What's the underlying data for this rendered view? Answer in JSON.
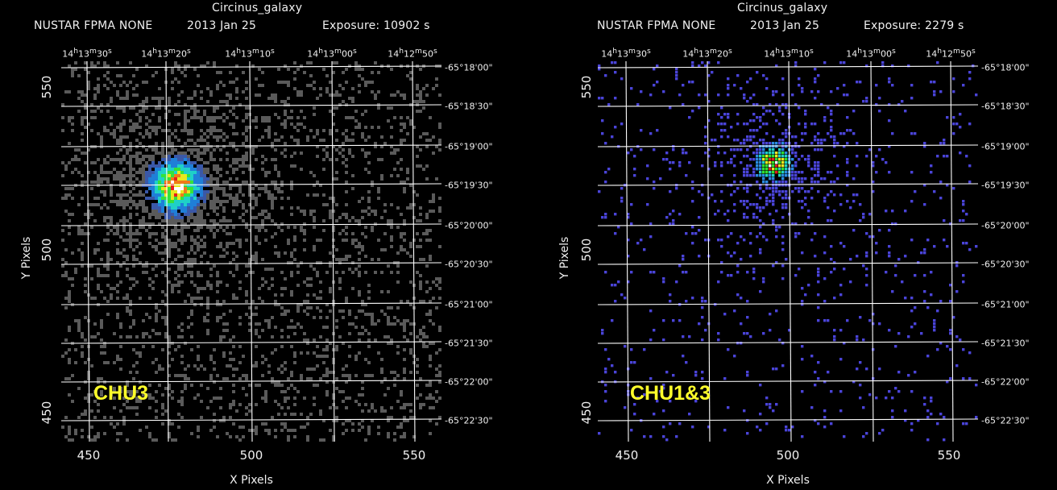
{
  "left": {
    "target": "Circinus_galaxy",
    "instrument": "NUSTAR FPMA NONE",
    "date": "2013 Jan 25",
    "exposure": "Exposure: 10902 s",
    "label": "CHU3",
    "ra_ticks": [
      "14h13m30s",
      "14h13m20s",
      "14h13m10s",
      "14h13m00s",
      "14h12m50s"
    ],
    "dec_ticks": [
      "-65°18'00\"",
      "-65°18'30\"",
      "-65°19'00\"",
      "-65°19'30\"",
      "-65°20'00\"",
      "-65°20'30\"",
      "-65°21'00\"",
      "-65°21'30\"",
      "-65°22'00\"",
      "-65°22'30\""
    ],
    "x_ticks": [
      "450",
      "500",
      "550"
    ],
    "y_ticks": [
      "550",
      "500",
      "450"
    ],
    "xlabel": "X Pixels",
    "ylabel": "Y Pixels",
    "colormap": "gray-rainbow",
    "source_center": [
      476,
      513
    ]
  },
  "right": {
    "target": "Circinus_galaxy",
    "instrument": "NUSTAR FPMA NONE",
    "date": "2013 Jan 25",
    "exposure": "Exposure: 2279 s",
    "label": "CHU1&3",
    "ra_ticks": [
      "14h13m30s",
      "14h13m20s",
      "14h13m10s",
      "14h13m00s",
      "14h12m50s"
    ],
    "dec_ticks": [
      "-65°18'00\"",
      "-65°18'30\"",
      "-65°19'00\"",
      "-65°19'30\"",
      "-65°20'00\"",
      "-65°20'30\"",
      "-65°21'00\"",
      "-65°21'30\"",
      "-65°22'00\"",
      "-65°22'30\""
    ],
    "x_ticks": [
      "450",
      "500",
      "550"
    ],
    "y_ticks": [
      "550",
      "500",
      "450"
    ],
    "xlabel": "X Pixels",
    "ylabel": "Y Pixels",
    "colormap": "blue-rainbow",
    "source_center": [
      495,
      520
    ]
  }
}
